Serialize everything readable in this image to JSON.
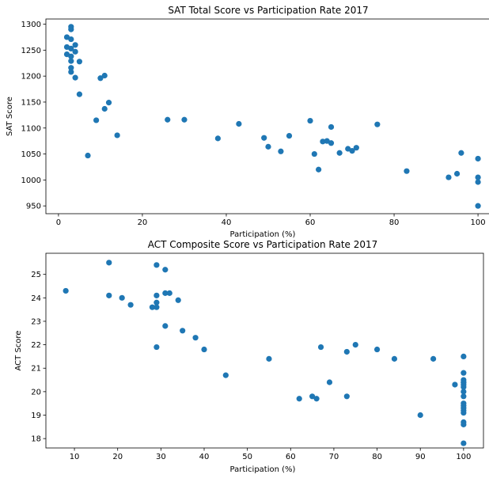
{
  "colors": {
    "marker": "#1f77b4",
    "axis": "#000000",
    "background": "#ffffff"
  },
  "chart_data": [
    {
      "type": "scatter",
      "title": "SAT Total Score vs Participation Rate 2017",
      "xlabel": "Participation (%)",
      "ylabel": "SAT Score",
      "xlim": [
        -3,
        103
      ],
      "ylim": [
        935,
        1310
      ],
      "xticks": [
        0,
        20,
        40,
        60,
        80,
        100
      ],
      "xtick_labels": [
        "0",
        "20",
        "40",
        "60",
        "80",
        "100"
      ],
      "yticks": [
        950,
        1000,
        1050,
        1100,
        1150,
        1200,
        1250,
        1300
      ],
      "ytick_labels": [
        "950",
        "1000",
        "1050",
        "1100",
        "1150",
        "1200",
        "1250",
        "1300"
      ],
      "grid": false,
      "legend": "none",
      "points": [
        {
          "x": 5,
          "y": 1165
        },
        {
          "x": 38,
          "y": 1080
        },
        {
          "x": 30,
          "y": 1116
        },
        {
          "x": 3,
          "y": 1208
        },
        {
          "x": 53,
          "y": 1055
        },
        {
          "x": 11,
          "y": 1201
        },
        {
          "x": 100,
          "y": 1041
        },
        {
          "x": 100,
          "y": 996
        },
        {
          "x": 100,
          "y": 950
        },
        {
          "x": 83,
          "y": 1017
        },
        {
          "x": 61,
          "y": 1050
        },
        {
          "x": 55,
          "y": 1085
        },
        {
          "x": 93,
          "y": 1005
        },
        {
          "x": 9,
          "y": 1115
        },
        {
          "x": 63,
          "y": 1074
        },
        {
          "x": 2,
          "y": 1275
        },
        {
          "x": 4,
          "y": 1260
        },
        {
          "x": 4,
          "y": 1247
        },
        {
          "x": 95,
          "y": 1012
        },
        {
          "x": 69,
          "y": 1060
        },
        {
          "x": 76,
          "y": 1107
        },
        {
          "x": 100,
          "y": 1005
        },
        {
          "x": 3,
          "y": 1295
        },
        {
          "x": 2,
          "y": 1242
        },
        {
          "x": 3,
          "y": 1271
        },
        {
          "x": 3,
          "y": 1229
        },
        {
          "x": 10,
          "y": 1196
        },
        {
          "x": 3,
          "y": 1253
        },
        {
          "x": 26,
          "y": 1116
        },
        {
          "x": 96,
          "y": 1052
        },
        {
          "x": 70,
          "y": 1056
        },
        {
          "x": 67,
          "y": 1052
        },
        {
          "x": 49,
          "y": 1081
        },
        {
          "x": 2,
          "y": 1256
        },
        {
          "x": 12,
          "y": 1149
        },
        {
          "x": 7,
          "y": 1047
        },
        {
          "x": 43,
          "y": 1108
        },
        {
          "x": 65,
          "y": 1071
        },
        {
          "x": 71,
          "y": 1062
        },
        {
          "x": 50,
          "y": 1064
        },
        {
          "x": 3,
          "y": 1216
        },
        {
          "x": 5,
          "y": 1228
        },
        {
          "x": 62,
          "y": 1020
        },
        {
          "x": 3,
          "y": 1238
        },
        {
          "x": 60,
          "y": 1114
        },
        {
          "x": 65,
          "y": 1102
        },
        {
          "x": 64,
          "y": 1075
        },
        {
          "x": 14,
          "y": 1086
        },
        {
          "x": 11,
          "y": 1137
        },
        {
          "x": 4,
          "y": 1197
        },
        {
          "x": 3,
          "y": 1290
        }
      ]
    },
    {
      "type": "scatter",
      "title": "ACT Composite Score vs Participation Rate 2017",
      "xlabel": "Participation (%)",
      "ylabel": "ACT Score",
      "xlim": [
        3.4,
        104.6
      ],
      "ylim": [
        17.6,
        25.9
      ],
      "xticks": [
        10,
        20,
        30,
        40,
        50,
        60,
        70,
        80,
        90,
        100
      ],
      "xtick_labels": [
        "10",
        "20",
        "30",
        "40",
        "50",
        "60",
        "70",
        "80",
        "90",
        "100"
      ],
      "yticks": [
        18,
        19,
        20,
        21,
        22,
        23,
        24,
        25
      ],
      "ytick_labels": [
        "18",
        "19",
        "20",
        "21",
        "22",
        "23",
        "24",
        "25"
      ],
      "grid": false,
      "legend": "none",
      "points": [
        {
          "x": 8,
          "y": 24.3
        },
        {
          "x": 18,
          "y": 25.5
        },
        {
          "x": 18,
          "y": 24.1
        },
        {
          "x": 21,
          "y": 24.0
        },
        {
          "x": 23,
          "y": 23.7
        },
        {
          "x": 28,
          "y": 23.6
        },
        {
          "x": 29,
          "y": 25.4
        },
        {
          "x": 29,
          "y": 24.1
        },
        {
          "x": 29,
          "y": 23.8
        },
        {
          "x": 29,
          "y": 23.6
        },
        {
          "x": 29,
          "y": 21.9
        },
        {
          "x": 31,
          "y": 25.2
        },
        {
          "x": 31,
          "y": 24.2
        },
        {
          "x": 32,
          "y": 24.2
        },
        {
          "x": 31,
          "y": 22.8
        },
        {
          "x": 34,
          "y": 23.9
        },
        {
          "x": 35,
          "y": 22.6
        },
        {
          "x": 38,
          "y": 22.3
        },
        {
          "x": 40,
          "y": 21.8
        },
        {
          "x": 45,
          "y": 20.7
        },
        {
          "x": 55,
          "y": 21.4
        },
        {
          "x": 62,
          "y": 19.7
        },
        {
          "x": 65,
          "y": 19.8
        },
        {
          "x": 66,
          "y": 19.7
        },
        {
          "x": 67,
          "y": 21.9
        },
        {
          "x": 69,
          "y": 20.4
        },
        {
          "x": 73,
          "y": 21.7
        },
        {
          "x": 73,
          "y": 19.8
        },
        {
          "x": 75,
          "y": 22.0
        },
        {
          "x": 80,
          "y": 21.8
        },
        {
          "x": 84,
          "y": 21.4
        },
        {
          "x": 90,
          "y": 19.0
        },
        {
          "x": 93,
          "y": 21.4
        },
        {
          "x": 98,
          "y": 20.3
        },
        {
          "x": 100,
          "y": 21.5
        },
        {
          "x": 100,
          "y": 20.8
        },
        {
          "x": 100,
          "y": 20.5
        },
        {
          "x": 100,
          "y": 20.4
        },
        {
          "x": 100,
          "y": 20.3
        },
        {
          "x": 100,
          "y": 20.2
        },
        {
          "x": 100,
          "y": 20.0
        },
        {
          "x": 100,
          "y": 19.8
        },
        {
          "x": 100,
          "y": 19.5
        },
        {
          "x": 100,
          "y": 19.4
        },
        {
          "x": 100,
          "y": 19.2
        },
        {
          "x": 100,
          "y": 19.1
        },
        {
          "x": 100,
          "y": 18.7
        },
        {
          "x": 100,
          "y": 18.6
        },
        {
          "x": 100,
          "y": 17.8
        },
        {
          "x": 100,
          "y": 19.3
        },
        {
          "x": 100,
          "y": 20.4
        }
      ]
    }
  ]
}
